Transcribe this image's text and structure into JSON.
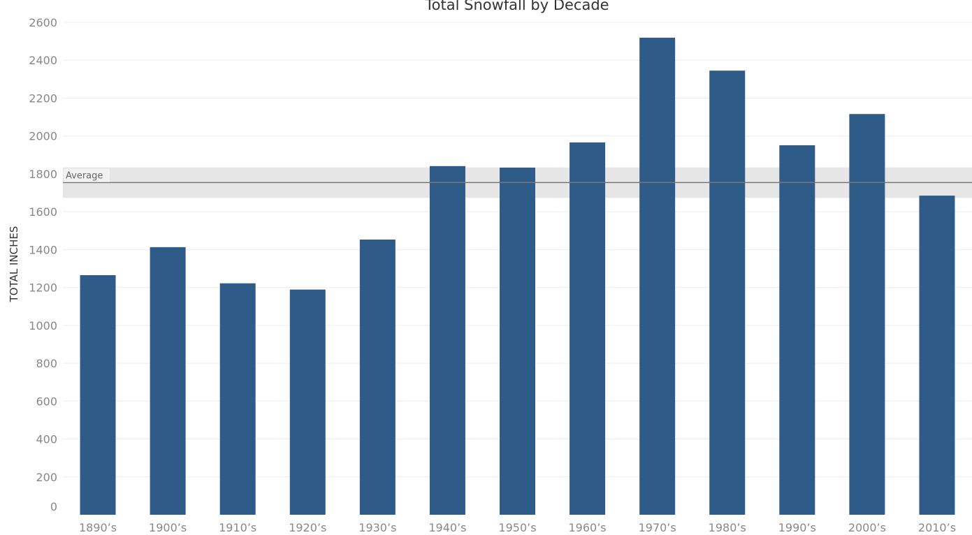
{
  "chart_data": {
    "type": "bar",
    "title": "Total Snowfall by Decade",
    "xlabel": "",
    "ylabel": "TOTAL INCHES",
    "categories": [
      "1890’s",
      "1900’s",
      "1910’s",
      "1920’s",
      "1930’s",
      "1940’s",
      "1950’s",
      "1960’s",
      "1970’s",
      "1980’s",
      "1990’s",
      "2000’s",
      "2010’s"
    ],
    "values": [
      1265,
      1413,
      1222,
      1189,
      1453,
      1841,
      1833,
      1966,
      2519,
      2345,
      1951,
      2116,
      1685
    ],
    "ylim": [
      0,
      2600
    ],
    "yticks": [
      0,
      200,
      400,
      600,
      800,
      1000,
      1200,
      1400,
      1600,
      1800,
      2000,
      2200,
      2400,
      2600
    ],
    "grid": true,
    "bar_color": "#2e5b88",
    "reference_line": {
      "label": "Average",
      "value": 1754,
      "band": [
        1673,
        1834
      ],
      "line_color": "#777777",
      "band_color": "#e6e6e6"
    }
  }
}
